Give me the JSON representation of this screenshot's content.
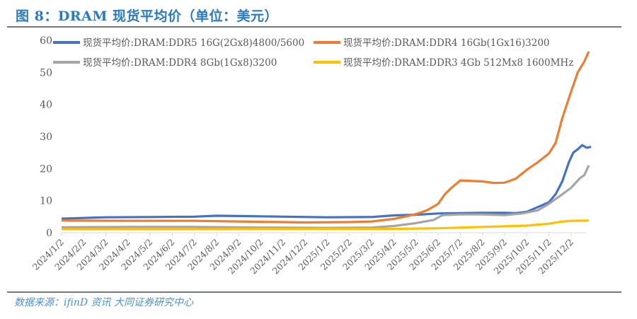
{
  "title": "图 8：DRAM 现货平均价（单位：美元）",
  "source": "数据来源：ifinD 资讯 大同证券研究中心",
  "chart_data": {
    "type": "line",
    "title": "DRAM 现货平均价（单位：美元）",
    "xlabel": "",
    "ylabel": "",
    "ylim": [
      0,
      60
    ],
    "yticks": [
      0,
      10,
      20,
      30,
      40,
      50,
      60
    ],
    "x_unit": "months since 2024/1/2",
    "xticks": [
      "2024/1/2",
      "2024/2/2",
      "2024/3/2",
      "2024/4/2",
      "2024/5/2",
      "2024/6/2",
      "2024/7/2",
      "2024/8/2",
      "2024/9/2",
      "2024/10/2",
      "2024/11/2",
      "2024/12/2",
      "2025/1/2",
      "2025/2/2",
      "2025/3/2",
      "2025/4/2",
      "2025/5/2",
      "2025/6/2",
      "2025/7/2",
      "2025/8/2",
      "2025/9/2",
      "2025/10/2",
      "2025/11/2",
      "2025/12/2"
    ],
    "grid": false,
    "legend": "top",
    "series": [
      {
        "name": "现货平均价:DRAM:DDR5 16G(2Gx8)4800/5600",
        "color": "#4472c4",
        "x": [
          0,
          2,
          4,
          6,
          7,
          8,
          10,
          12,
          14,
          15,
          16,
          17,
          18,
          19,
          20,
          20.5,
          21,
          21.5,
          22,
          22.3,
          22.6,
          22.9,
          23.1,
          23.3,
          23.5,
          23.7,
          23.9
        ],
        "y": [
          4.4,
          4.8,
          4.9,
          5.0,
          5.3,
          5.2,
          5.0,
          4.8,
          4.9,
          5.4,
          5.6,
          6.0,
          6.1,
          6.2,
          6.2,
          6.1,
          6.5,
          8.0,
          9.5,
          12,
          16,
          22,
          25,
          26,
          27.3,
          26.5,
          26.8
        ]
      },
      {
        "name": "现货平均价:DRAM:DDR4 16Gb(1Gx16)3200",
        "color": "#ed7d31",
        "x": [
          0,
          3,
          6,
          9,
          11,
          13,
          14,
          15,
          15.5,
          16,
          16.5,
          17,
          17.3,
          17.6,
          18,
          19,
          19.5,
          20,
          20.5,
          21,
          21.5,
          22,
          22.3,
          22.6,
          23,
          23.3,
          23.6,
          23.8
        ],
        "y": [
          3.8,
          3.7,
          3.7,
          3.4,
          3.2,
          3.3,
          3.5,
          4.3,
          5.0,
          5.8,
          7.0,
          9.0,
          12,
          14,
          16.3,
          16,
          15.5,
          15.6,
          16.8,
          19.6,
          22,
          24.7,
          28,
          35.7,
          44,
          50,
          53.4,
          56.5
        ]
      },
      {
        "name": "现货平均价:DRAM:DDR4 8Gb(1Gx8)3200",
        "color": "#a5a5a5",
        "x": [
          0,
          3,
          6,
          9,
          12,
          14,
          15,
          16,
          16.8,
          17.2,
          18,
          19,
          20,
          20.8,
          21.5,
          22,
          22.5,
          23,
          23.4,
          23.6,
          23.8
        ],
        "y": [
          1.7,
          1.8,
          1.8,
          1.6,
          1.5,
          1.6,
          2.1,
          3.0,
          4.0,
          5.5,
          5.7,
          5.7,
          5.5,
          6.0,
          7.0,
          9.0,
          11.5,
          14,
          17,
          18,
          21
        ]
      },
      {
        "name": "现货平均价:DRAM:DDR3 4Gb 512Mx8 1600MHz",
        "color": "#ffc000",
        "x": [
          0,
          6,
          12,
          15,
          17,
          19,
          21,
          22,
          22.5,
          23,
          23.8
        ],
        "y": [
          1.1,
          1.1,
          1.2,
          1.2,
          1.4,
          1.8,
          2.2,
          2.8,
          3.4,
          3.7,
          3.8
        ]
      }
    ]
  }
}
